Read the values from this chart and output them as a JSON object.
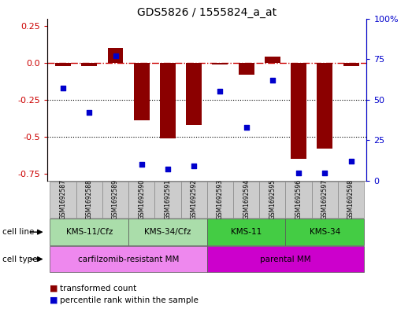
{
  "title": "GDS5826 / 1555824_a_at",
  "samples": [
    "GSM1692587",
    "GSM1692588",
    "GSM1692589",
    "GSM1692590",
    "GSM1692591",
    "GSM1692592",
    "GSM1692593",
    "GSM1692594",
    "GSM1692595",
    "GSM1692596",
    "GSM1692597",
    "GSM1692598"
  ],
  "bar_values": [
    -0.02,
    -0.02,
    0.1,
    -0.39,
    -0.51,
    -0.42,
    -0.01,
    -0.08,
    0.04,
    -0.65,
    -0.58,
    -0.02
  ],
  "percentile_values": [
    57,
    42,
    77,
    10,
    7,
    9,
    55,
    33,
    62,
    5,
    5,
    12
  ],
  "bar_color": "#8B0000",
  "blue_color": "#0000CC",
  "dashed_color": "#CC0000",
  "ylim_left": [
    -0.8,
    0.3
  ],
  "ylim_right": [
    0,
    100
  ],
  "yticks_left": [
    0.25,
    0.0,
    -0.25,
    -0.5,
    -0.75
  ],
  "yticks_right": [
    100,
    75,
    50,
    25,
    0
  ],
  "cell_line_groups": [
    {
      "label": "KMS-11/Cfz",
      "start": 0,
      "end": 2,
      "color": "#AADDAA"
    },
    {
      "label": "KMS-34/Cfz",
      "start": 3,
      "end": 5,
      "color": "#AADDAA"
    },
    {
      "label": "KMS-11",
      "start": 6,
      "end": 8,
      "color": "#44CC44"
    },
    {
      "label": "KMS-34",
      "start": 9,
      "end": 11,
      "color": "#44CC44"
    }
  ],
  "cell_type_groups": [
    {
      "label": "carfilzomib-resistant MM",
      "start": 0,
      "end": 5,
      "color": "#EE88EE"
    },
    {
      "label": "parental MM",
      "start": 6,
      "end": 11,
      "color": "#CC00CC"
    }
  ],
  "legend_red_label": "transformed count",
  "legend_blue_label": "percentile rank within the sample",
  "cell_line_label": "cell line",
  "cell_type_label": "cell type",
  "sample_bg_color": "#CCCCCC"
}
